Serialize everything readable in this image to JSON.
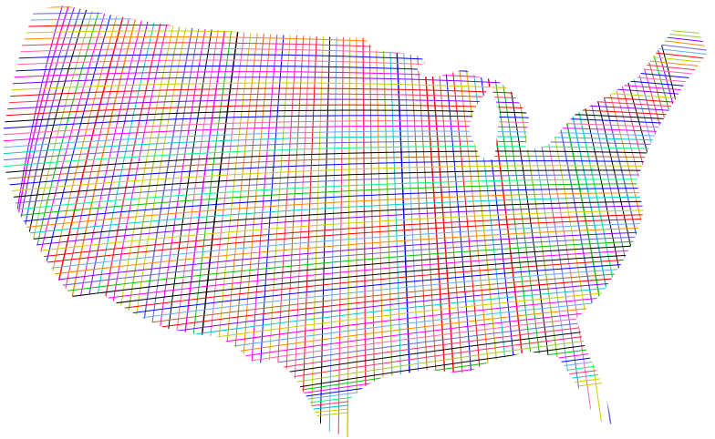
{
  "map": {
    "subject": "contiguous-united-states",
    "style": "prismatic-grid-lines",
    "background_color": "#ffffff",
    "line_palette": [
      "#ff0000",
      "#00c000",
      "#0000ff",
      "#ff00ff",
      "#00cccc",
      "#cccc00",
      "#000000",
      "#ff8800",
      "#8800ff",
      "#00ff88",
      "#ff66aa",
      "#66aaff",
      "#99cc33",
      "#aa6633",
      "#6666cc",
      "#ff3366"
    ]
  }
}
